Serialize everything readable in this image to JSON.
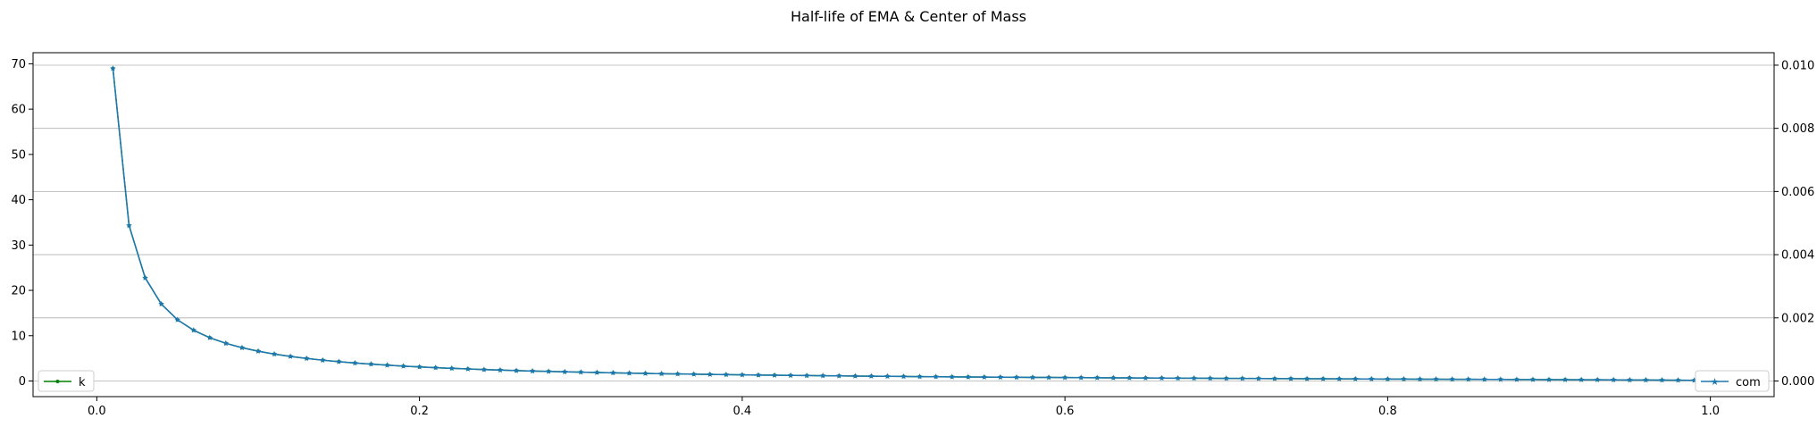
{
  "chart_data": {
    "type": "line",
    "title": "Half-life of EMA & Center of Mass",
    "xlabel": "",
    "ylabel": "",
    "y2label": "",
    "xlim": [
      -0.0395,
      1.0395
    ],
    "ylim": [
      -3.45,
      72.45
    ],
    "y2lim": [
      -0.000495,
      0.010395
    ],
    "grid": "y2-horizontal",
    "x_ticks": [
      0.0,
      0.2,
      0.4,
      0.6,
      0.8,
      1.0
    ],
    "x_tick_labels": [
      "0.0",
      "0.2",
      "0.4",
      "0.6",
      "0.8",
      "1.0"
    ],
    "y_ticks": [
      0,
      10,
      20,
      30,
      40,
      50,
      60,
      70
    ],
    "y_tick_labels": [
      "0",
      "10",
      "20",
      "30",
      "40",
      "50",
      "60",
      "70"
    ],
    "y2_ticks": [
      0.0,
      0.002,
      0.004,
      0.006,
      0.008,
      0.01
    ],
    "y2_tick_labels": [
      "0.000",
      "0.002",
      "0.004",
      "0.006",
      "0.008",
      "0.010"
    ],
    "x_start": 0.01,
    "x_step": 0.01,
    "x_count": 99,
    "series": [
      {
        "name": "k",
        "axis": "left",
        "color": "#008000",
        "marker": "dot",
        "legend_loc": "lower-left",
        "values_sample": {
          "x": [
            0.01,
            0.02,
            0.03,
            0.05,
            0.1,
            0.2,
            0.5,
            0.99
          ],
          "y": [
            68.97,
            34.31,
            22.76,
            13.51,
            6.58,
            3.11,
            1.0,
            0.15
          ]
        }
      },
      {
        "name": "com",
        "axis": "right",
        "color": "#1f77b4",
        "marker": "star",
        "legend_loc": "lower-right",
        "values_sample": {
          "x": [
            0.01,
            0.02,
            0.03,
            0.05,
            0.1,
            0.2,
            0.5,
            0.99
          ],
          "y": [
            0.0099,
            0.0049,
            0.00327,
            0.00194,
            0.00095,
            0.00045,
            0.00014,
            2e-05
          ]
        }
      }
    ]
  }
}
